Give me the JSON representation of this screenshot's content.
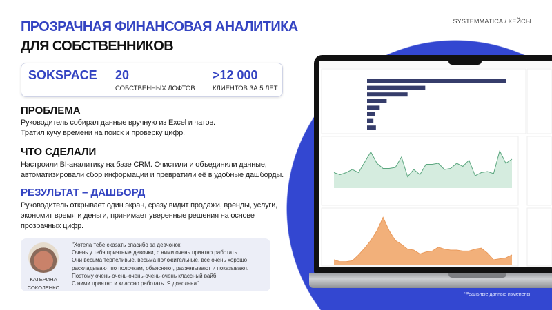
{
  "brand": "SYSTEMMATICA / КЕЙСЫ",
  "title": {
    "line1": "ПРОЗРАЧНАЯ ФИНАНСОВАЯ АНАЛИТИКА",
    "line2": "ДЛЯ СОБСТВЕННИКОВ"
  },
  "stats": {
    "company": "SOKSPACE",
    "items": [
      {
        "value": "20",
        "label": "СОБСТВЕННЫХ ЛОФТОВ"
      },
      {
        "value": ">12 000",
        "label": "КЛИЕНТОВ ЗА 5 ЛЕТ"
      }
    ]
  },
  "sections": [
    {
      "heading": "ПРОБЛЕМА",
      "lines": [
        "Руководитель собирал данные вручную из Excel и чатов.",
        "Тратил кучу времени на поиск и проверку цифр."
      ]
    },
    {
      "heading": "ЧТО СДЕЛАЛИ",
      "lines": [
        "Настроили BI-аналитику на базе CRM. Очистили и объединили данные,",
        "автоматизировали сбор информации и превратили её в удобные дашборды."
      ]
    },
    {
      "heading": "РЕЗУЛЬТАТ – ДАШБОРД",
      "lines": [
        "Руководитель открывает один экран, сразу видит продажи, вренды, услуги,",
        "экономит время и деньги, принимает уверенные решения на основе",
        "прозрачных цифр."
      ]
    }
  ],
  "testimonial": {
    "name_line1": "КАТЕРИНА",
    "name_line2": "СОКОЛЕНКО",
    "lines": [
      "\"Хотела тебе сказать спасибо за девчонок.",
      "Очень у тебя приятные девочки, с ними очень приятно работать.",
      "Они весьма терпеливые, весьма положительные, всё очень хорошо",
      "раскладывают по полочкам, объясняют, разжевывают и показывают.",
      "Поэтому очень-очень-очень-очень-очень классный вайб.",
      "С ними приятно и классно работать. Я довольна\""
    ]
  },
  "footnote": "*Реальные данные изменены",
  "colors": {
    "accent": "#3444c2",
    "blob": "#3347d1",
    "bar": "#363d6b",
    "green": "#5aa67e",
    "orange": "#f2b07a"
  },
  "dashboard": {
    "bar_values": [
      22,
      9.2,
      6.4,
      3.1,
      2,
      1.2,
      1,
      1.4
    ],
    "green_values": [
      3,
      2.6,
      3,
      3.6,
      3,
      5,
      7,
      4.8,
      3.8,
      3.8,
      4,
      6,
      2.2,
      3.6,
      2.6,
      4.6,
      4.6,
      4.8,
      3.6,
      3.8,
      4.8,
      4.2,
      5.4,
      2.4,
      3,
      3.2,
      2.8,
      7.2,
      4.8,
      5.6
    ],
    "orange_values": [
      1,
      0.6,
      0.6,
      0.8,
      2,
      3.4,
      5,
      7,
      9.8,
      7,
      5,
      4.2,
      3.2,
      3,
      2.2,
      2.6,
      2.8,
      3.6,
      3.2,
      3,
      3,
      2.8,
      2.8,
      3.2,
      3.4,
      2.4,
      1,
      1.2,
      1.4,
      2
    ]
  }
}
